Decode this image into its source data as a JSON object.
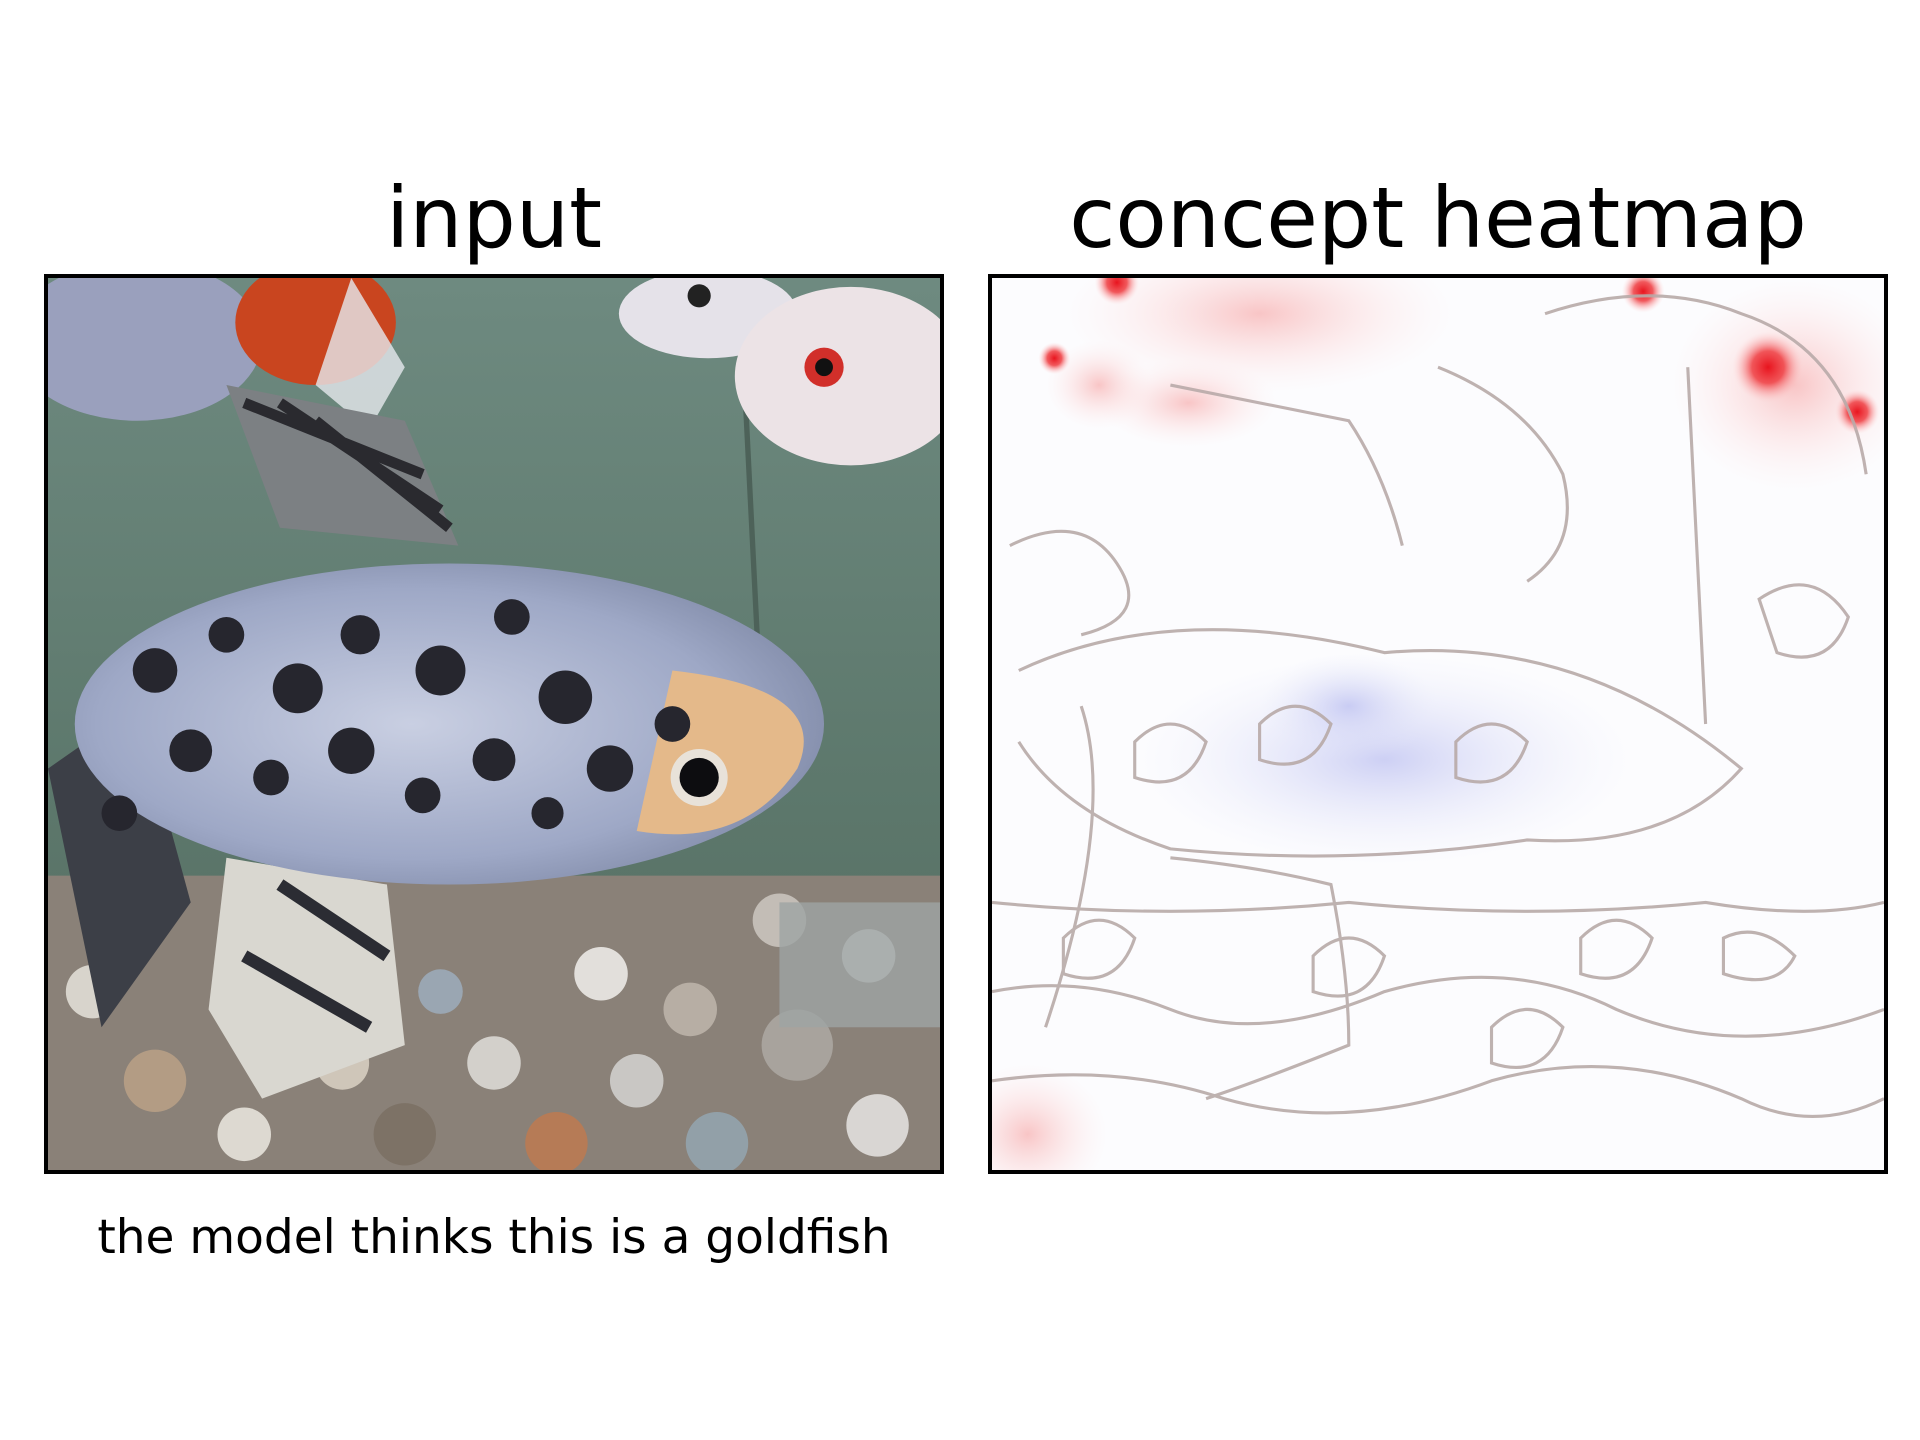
{
  "panels": {
    "input": {
      "title": "input",
      "caption": "the model thinks this is a goldfish"
    },
    "heatmap": {
      "title": "concept heatmap"
    }
  },
  "colors": {
    "positive": "#e8141e",
    "negative": "#8a91e6",
    "contour": "#b8aaa8",
    "water": "#5f7a6e",
    "frame": "#000000"
  }
}
